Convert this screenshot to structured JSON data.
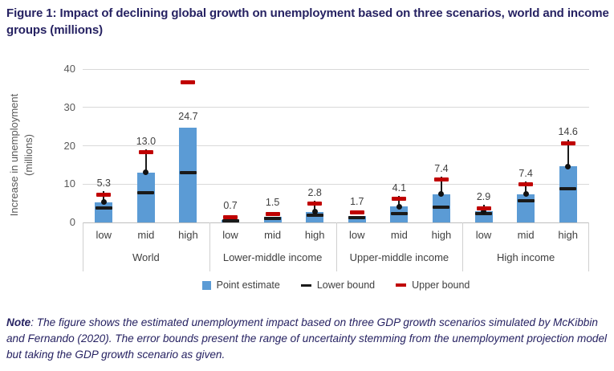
{
  "title": {
    "text": "Figure 1: Impact of declining global growth on unemployment based on three scenarios, world and income groups (millions)"
  },
  "chart_data": {
    "type": "bar",
    "ylabel_line1": "Increase in unemployment",
    "ylabel_line2": "(millions)",
    "ylim": [
      0,
      40
    ],
    "yticks": [
      0,
      10,
      20,
      30,
      40
    ],
    "grid": true,
    "legend": {
      "position": "bottom",
      "items": [
        {
          "label": "Point estimate",
          "marker": "square",
          "color": "#5b9bd5"
        },
        {
          "label": "Lower bound",
          "marker": "dash",
          "color": "#1a1a1a"
        },
        {
          "label": "Upper bound",
          "marker": "dash",
          "color": "#c00000"
        }
      ]
    },
    "groups": [
      {
        "label": "World",
        "bars": [
          {
            "scenario": "low",
            "value": 5.3,
            "label": "5.3",
            "lower": 3.7,
            "upper": 7.3,
            "whisker": true
          },
          {
            "scenario": "mid",
            "value": 13.0,
            "label": "13.0",
            "lower": 7.8,
            "upper": 18.3,
            "whisker": true
          },
          {
            "scenario": "high",
            "value": 24.7,
            "label": "24.7",
            "lower": 13.0,
            "upper": 36.6,
            "whisker": false,
            "detached_upper": true
          }
        ]
      },
      {
        "label": "Lower-middle income",
        "bars": [
          {
            "scenario": "low",
            "value": 0.7,
            "label": "0.7",
            "lower": 0.5,
            "upper": 1.4,
            "whisker": false
          },
          {
            "scenario": "mid",
            "value": 1.5,
            "label": "1.5",
            "lower": 1.1,
            "upper": 2.3,
            "whisker": false
          },
          {
            "scenario": "high",
            "value": 2.8,
            "label": "2.8",
            "lower": 1.9,
            "upper": 4.9,
            "whisker": true
          }
        ]
      },
      {
        "label": "Upper-middle income",
        "bars": [
          {
            "scenario": "low",
            "value": 1.7,
            "label": "1.7",
            "lower": 1.2,
            "upper": 2.6,
            "whisker": false
          },
          {
            "scenario": "mid",
            "value": 4.1,
            "label": "4.1",
            "lower": 2.3,
            "upper": 6.1,
            "whisker": true
          },
          {
            "scenario": "high",
            "value": 7.4,
            "label": "7.4",
            "lower": 3.9,
            "upper": 11.2,
            "whisker": true
          }
        ]
      },
      {
        "label": "High income",
        "bars": [
          {
            "scenario": "low",
            "value": 2.9,
            "label": "2.9",
            "lower": 2.3,
            "upper": 3.7,
            "whisker": true
          },
          {
            "scenario": "mid",
            "value": 7.4,
            "label": "7.4",
            "lower": 5.6,
            "upper": 9.9,
            "whisker": true
          },
          {
            "scenario": "high",
            "value": 14.6,
            "label": "14.6",
            "lower": 8.8,
            "upper": 20.7,
            "whisker": true
          }
        ]
      }
    ],
    "colors": {
      "bar": "#5b9bd5",
      "lower_bound": "#1a1a1a",
      "upper_bound": "#c00000",
      "grid": "#d9d9d9",
      "axis": "#bfbfbf",
      "tick_text": "#595959",
      "label_text": "#404040",
      "title_text": "#262262"
    }
  },
  "note": {
    "prefix": "Note",
    "text": ": The figure shows the estimated unemployment impact based on three GDP growth scenarios simulated by McKibbin and Fernando (2020). The error bounds present the range of uncertainty stemming from the unemployment projection model but taking the GDP growth scenario as given."
  }
}
